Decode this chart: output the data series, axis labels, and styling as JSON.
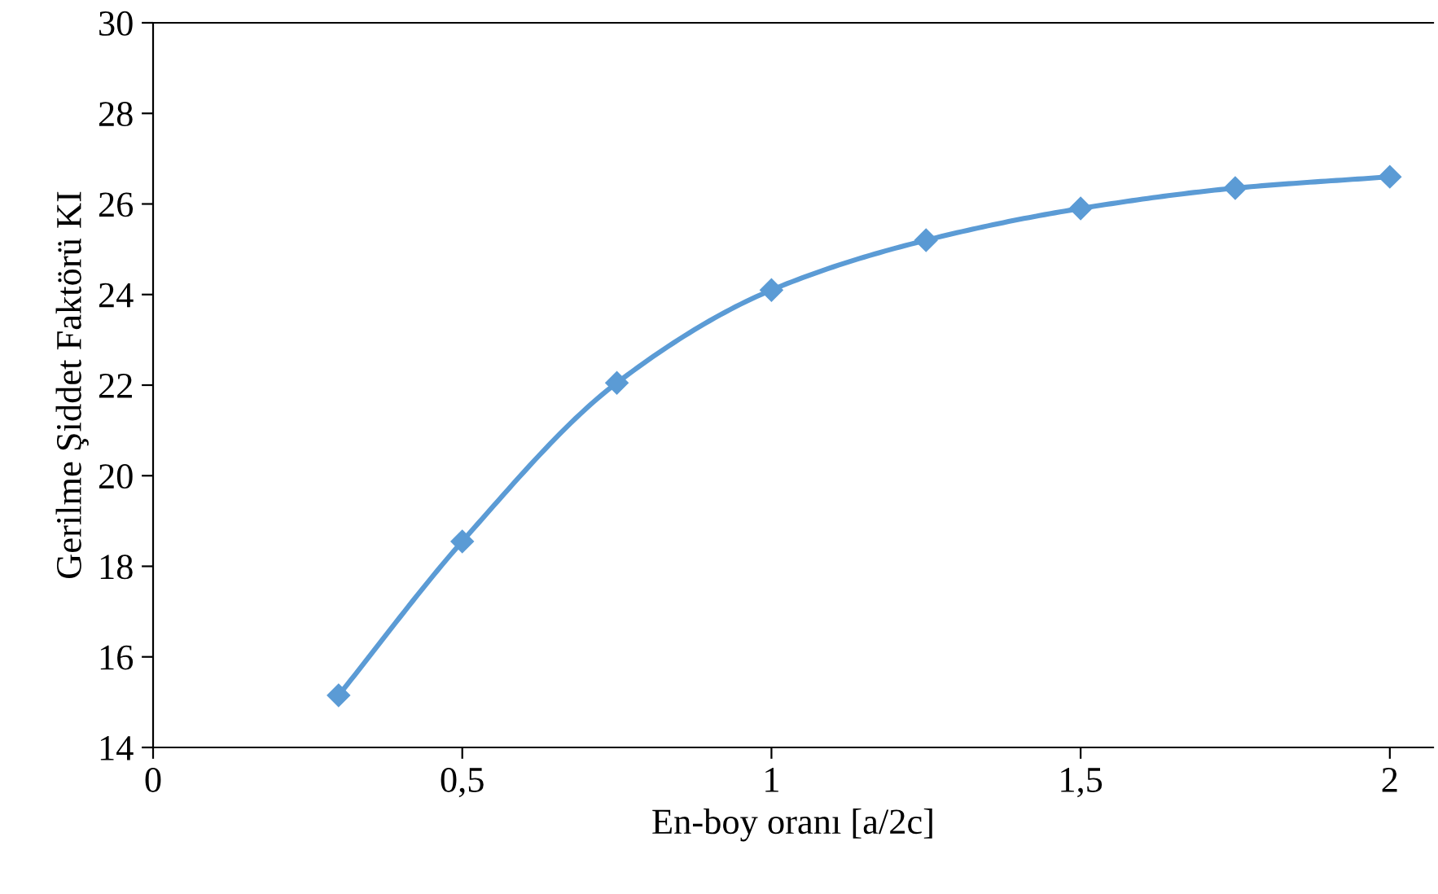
{
  "chart_data": {
    "type": "line",
    "xlabel": "En-boy oranı [a/2c]",
    "ylabel": "Gerilme Şiddet Faktörü KI",
    "x": [
      0.3,
      0.5,
      0.75,
      1,
      1.25,
      1.5,
      1.75,
      2
    ],
    "series": [
      {
        "color": "#5b9bd5",
        "values": [
          15.15,
          18.55,
          22.05,
          24.1,
          25.2,
          25.9,
          26.35,
          26.6
        ]
      }
    ],
    "xlim": [
      0,
      2.07
    ],
    "xticks": [
      0,
      {
        "value": 0.5,
        "label": "0,5"
      },
      1,
      {
        "value": 1.5,
        "label": "1,5"
      },
      2
    ],
    "ylim": [
      14,
      30
    ],
    "yticks": [
      14,
      16,
      18,
      20,
      22,
      24,
      26,
      28,
      30
    ],
    "grid": false,
    "legend": false,
    "marker": "diamond",
    "line_style": "solid"
  }
}
